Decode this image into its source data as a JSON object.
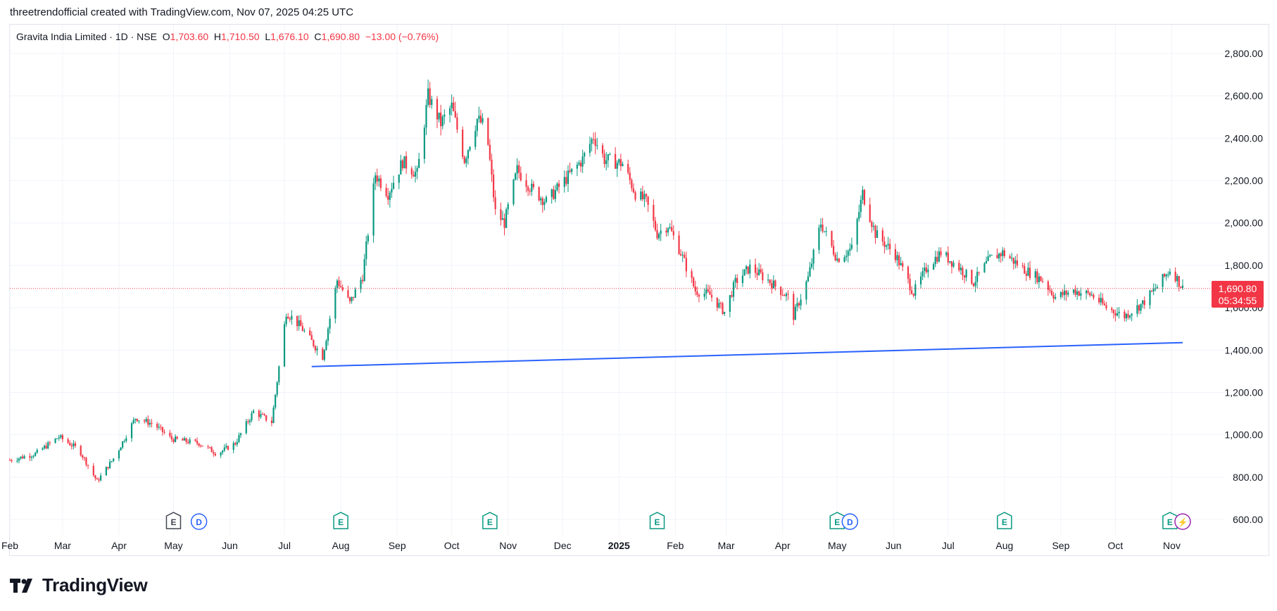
{
  "header": {
    "attribution": "threetrendofficial created with TradingView.com, Nov 07, 2025 04:25 UTC"
  },
  "legend": {
    "symbol": "Gravita India Limited · 1D · NSE",
    "o_label": "O",
    "o_value": "1,703.60",
    "h_label": "H",
    "h_value": "1,710.50",
    "l_label": "L",
    "l_value": "1,676.10",
    "c_label": "C",
    "c_value": "1,690.80",
    "change": "−13.00 (−0.76%)"
  },
  "price_tag": {
    "price": "1,690.80",
    "countdown": "05:34:55",
    "value": 1690.8
  },
  "footer": {
    "brand": "TradingView",
    "logo_icon": "tradingview-logo-icon"
  },
  "colors": {
    "up": "#089981",
    "down": "#f23645",
    "trendline": "#2962ff",
    "grid": "#f0f3fa",
    "dividend": "#2962ff",
    "split": "#9c27b0"
  },
  "chart_data": {
    "type": "candlestick",
    "title": "Gravita India Limited · 1D · NSE",
    "ylim": [
      560,
      2880
    ],
    "y_ticks": [
      "600.00",
      "800.00",
      "1,000.00",
      "1,200.00",
      "1,400.00",
      "1,600.00",
      "1,800.00",
      "2,000.00",
      "2,200.00",
      "2,400.00",
      "2,600.00",
      "2,800.00"
    ],
    "y_tick_values": [
      600,
      800,
      1000,
      1200,
      1400,
      1600,
      1800,
      2000,
      2200,
      2400,
      2600,
      2800
    ],
    "x_range": [
      "2024-02-01",
      "2025-11-07"
    ],
    "x_ticks": [
      {
        "label": "Feb",
        "date": "2024-02-01"
      },
      {
        "label": "Mar",
        "date": "2024-03-01"
      },
      {
        "label": "Apr",
        "date": "2024-04-01"
      },
      {
        "label": "May",
        "date": "2024-05-01"
      },
      {
        "label": "Jun",
        "date": "2024-06-01"
      },
      {
        "label": "Jul",
        "date": "2024-07-01"
      },
      {
        "label": "Aug",
        "date": "2024-08-01"
      },
      {
        "label": "Sep",
        "date": "2024-09-01"
      },
      {
        "label": "Oct",
        "date": "2024-10-01"
      },
      {
        "label": "Nov",
        "date": "2024-11-01"
      },
      {
        "label": "Dec",
        "date": "2024-12-01"
      },
      {
        "label": "2025",
        "date": "2025-01-01",
        "bold": true
      },
      {
        "label": "Feb",
        "date": "2025-02-01"
      },
      {
        "label": "Mar",
        "date": "2025-03-01"
      },
      {
        "label": "Apr",
        "date": "2025-04-01"
      },
      {
        "label": "May",
        "date": "2025-05-01"
      },
      {
        "label": "Jun",
        "date": "2025-06-01"
      },
      {
        "label": "Jul",
        "date": "2025-07-01"
      },
      {
        "label": "Aug",
        "date": "2025-08-01"
      },
      {
        "label": "Sep",
        "date": "2025-09-01"
      },
      {
        "label": "Oct",
        "date": "2025-10-01"
      },
      {
        "label": "Nov",
        "date": "2025-11-01"
      }
    ],
    "close_anchors": [
      [
        "2024-02-01",
        880
      ],
      [
        "2024-02-15",
        910
      ],
      [
        "2024-02-28",
        990
      ],
      [
        "2024-03-10",
        930
      ],
      [
        "2024-03-20",
        780
      ],
      [
        "2024-03-30",
        900
      ],
      [
        "2024-04-10",
        1080
      ],
      [
        "2024-04-20",
        1050
      ],
      [
        "2024-04-30",
        980
      ],
      [
        "2024-05-15",
        960
      ],
      [
        "2024-05-25",
        910
      ],
      [
        "2024-06-04",
        960
      ],
      [
        "2024-06-14",
        1110
      ],
      [
        "2024-06-24",
        1060
      ],
      [
        "2024-07-02",
        1580
      ],
      [
        "2024-07-10",
        1510
      ],
      [
        "2024-07-22",
        1370
      ],
      [
        "2024-07-30",
        1730
      ],
      [
        "2024-08-06",
        1620
      ],
      [
        "2024-08-13",
        1750
      ],
      [
        "2024-08-20",
        2230
      ],
      [
        "2024-08-27",
        2140
      ],
      [
        "2024-09-04",
        2290
      ],
      [
        "2024-09-12",
        2230
      ],
      [
        "2024-09-18",
        2600
      ],
      [
        "2024-09-25",
        2470
      ],
      [
        "2024-10-01",
        2550
      ],
      [
        "2024-10-08",
        2300
      ],
      [
        "2024-10-15",
        2490
      ],
      [
        "2024-10-20",
        2450
      ],
      [
        "2024-10-25",
        2050
      ],
      [
        "2024-10-30",
        2000
      ],
      [
        "2024-11-06",
        2250
      ],
      [
        "2024-11-14",
        2160
      ],
      [
        "2024-11-22",
        2100
      ],
      [
        "2024-12-02",
        2200
      ],
      [
        "2024-12-12",
        2300
      ],
      [
        "2024-12-18",
        2410
      ],
      [
        "2024-12-24",
        2300
      ],
      [
        "2025-01-03",
        2280
      ],
      [
        "2025-01-10",
        2140
      ],
      [
        "2025-01-16",
        2100
      ],
      [
        "2025-01-22",
        1950
      ],
      [
        "2025-01-28",
        1990
      ],
      [
        "2025-02-04",
        1860
      ],
      [
        "2025-02-12",
        1680
      ],
      [
        "2025-02-20",
        1660
      ],
      [
        "2025-02-28",
        1580
      ],
      [
        "2025-03-06",
        1720
      ],
      [
        "2025-03-14",
        1790
      ],
      [
        "2025-03-24",
        1730
      ],
      [
        "2025-04-04",
        1650
      ],
      [
        "2025-04-07",
        1560
      ],
      [
        "2025-04-15",
        1740
      ],
      [
        "2025-04-22",
        2000
      ],
      [
        "2025-05-01",
        1830
      ],
      [
        "2025-05-09",
        1880
      ],
      [
        "2025-05-15",
        2140
      ],
      [
        "2025-05-22",
        1950
      ],
      [
        "2025-06-02",
        1850
      ],
      [
        "2025-06-12",
        1670
      ],
      [
        "2025-06-20",
        1800
      ],
      [
        "2025-06-27",
        1860
      ],
      [
        "2025-07-07",
        1790
      ],
      [
        "2025-07-15",
        1720
      ],
      [
        "2025-07-24",
        1830
      ],
      [
        "2025-07-31",
        1860
      ],
      [
        "2025-08-12",
        1780
      ],
      [
        "2025-08-22",
        1730
      ],
      [
        "2025-08-29",
        1650
      ],
      [
        "2025-09-08",
        1680
      ],
      [
        "2025-09-18",
        1660
      ],
      [
        "2025-09-26",
        1600
      ],
      [
        "2025-10-06",
        1560
      ],
      [
        "2025-10-16",
        1620
      ],
      [
        "2025-10-24",
        1700
      ],
      [
        "2025-10-31",
        1780
      ],
      [
        "2025-11-03",
        1750
      ],
      [
        "2025-11-07",
        1690.8
      ]
    ],
    "trendline": {
      "start": [
        "2024-07-16",
        1322
      ],
      "end": [
        "2025-11-07",
        1435
      ]
    },
    "current_price_line": 1690.8,
    "event_markers": [
      {
        "type": "earnings",
        "label": "E",
        "date": "2024-05-01",
        "style": "past"
      },
      {
        "type": "dividend",
        "label": "D",
        "date": "2024-05-15"
      },
      {
        "type": "earnings",
        "label": "E",
        "date": "2024-08-01"
      },
      {
        "type": "earnings",
        "label": "E",
        "date": "2024-10-22"
      },
      {
        "type": "earnings",
        "label": "E",
        "date": "2025-01-22"
      },
      {
        "type": "earnings",
        "label": "E",
        "date": "2025-05-01"
      },
      {
        "type": "dividend",
        "label": "D",
        "date": "2025-05-08"
      },
      {
        "type": "earnings",
        "label": "E",
        "date": "2025-08-01"
      },
      {
        "type": "earnings",
        "label": "E",
        "date": "2025-10-31"
      },
      {
        "type": "split",
        "label": "⚡",
        "date": "2025-11-07"
      }
    ]
  }
}
